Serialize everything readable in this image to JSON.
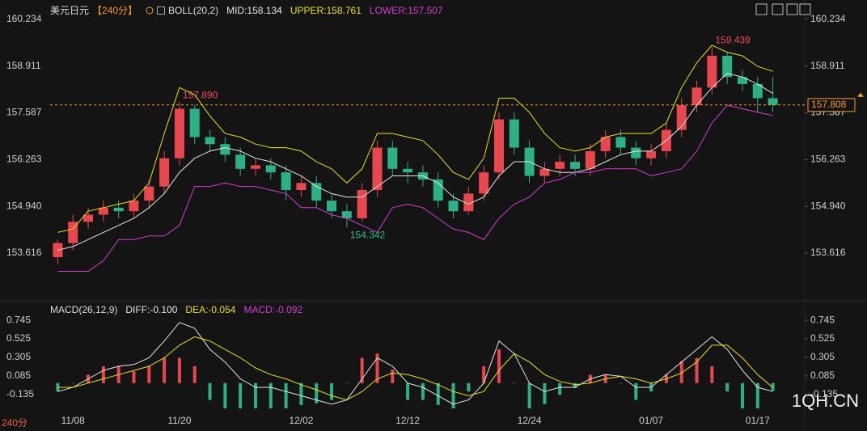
{
  "chart_data": [
    {
      "type": "candlestick",
      "symbol": "美元日元",
      "period": "【240分】",
      "indicator": "BOLL(20,2)",
      "up_color": "#e8474d",
      "down_color": "#2eb086",
      "open": [
        153.5,
        153.9,
        154.5,
        154.7,
        154.9,
        154.8,
        155.1,
        155.5,
        156.3,
        157.7,
        156.9,
        156.7,
        156.4,
        156.0,
        156.1,
        155.9,
        155.4,
        155.6,
        155.1,
        154.8,
        154.6,
        155.4,
        156.6,
        156.0,
        155.9,
        155.7,
        155.1,
        154.8,
        155.3,
        155.9,
        157.4,
        156.6,
        155.8,
        156.0,
        156.2,
        156.0,
        156.5,
        156.9,
        156.6,
        156.3,
        156.5,
        157.1,
        157.8,
        158.3,
        159.2,
        158.6,
        158.4,
        158.0
      ],
      "high": [
        154.0,
        154.7,
        154.9,
        155.1,
        155.1,
        155.3,
        155.7,
        156.5,
        157.89,
        157.8,
        157.1,
        156.9,
        156.6,
        156.3,
        156.3,
        156.1,
        155.8,
        155.8,
        155.3,
        155.0,
        155.6,
        156.8,
        156.8,
        156.2,
        156.1,
        155.9,
        155.3,
        155.5,
        156.1,
        157.6,
        157.6,
        156.8,
        156.2,
        156.4,
        156.4,
        156.7,
        157.1,
        157.1,
        156.8,
        156.7,
        157.3,
        158.0,
        158.5,
        159.439,
        159.3,
        158.8,
        158.6,
        158.6
      ],
      "low": [
        153.3,
        153.7,
        154.3,
        154.5,
        154.6,
        154.6,
        154.9,
        155.3,
        156.1,
        156.7,
        156.5,
        156.2,
        155.8,
        155.8,
        155.7,
        155.1,
        155.2,
        154.9,
        154.6,
        154.342,
        154.5,
        155.2,
        155.8,
        155.6,
        155.5,
        154.9,
        154.6,
        154.7,
        155.1,
        155.7,
        156.4,
        155.6,
        155.6,
        155.8,
        155.8,
        155.8,
        156.3,
        156.4,
        156.1,
        156.1,
        156.3,
        156.9,
        157.6,
        158.1,
        158.4,
        158.2,
        157.6,
        157.6
      ],
      "close": [
        153.9,
        154.5,
        154.7,
        154.9,
        154.8,
        155.1,
        155.5,
        156.3,
        157.7,
        156.9,
        156.7,
        156.4,
        156.0,
        156.1,
        155.9,
        155.4,
        155.6,
        155.1,
        154.8,
        154.6,
        155.4,
        156.6,
        156.0,
        155.9,
        155.7,
        155.1,
        154.8,
        155.3,
        155.9,
        157.4,
        156.6,
        155.8,
        156.0,
        156.2,
        156.0,
        156.5,
        156.9,
        156.6,
        156.3,
        156.5,
        157.1,
        157.8,
        158.3,
        159.2,
        158.6,
        158.4,
        158.0,
        157.808
      ],
      "high_labels": [
        null,
        null,
        null,
        null,
        null,
        null,
        null,
        null,
        "157.890",
        null,
        null,
        null,
        null,
        null,
        null,
        null,
        null,
        null,
        null,
        null,
        null,
        null,
        null,
        null,
        null,
        null,
        null,
        null,
        null,
        null,
        null,
        null,
        null,
        null,
        null,
        null,
        null,
        null,
        null,
        null,
        null,
        null,
        null,
        "159.439",
        null,
        null,
        null,
        null
      ],
      "low_labels": [
        null,
        null,
        null,
        null,
        null,
        null,
        null,
        null,
        null,
        null,
        null,
        null,
        null,
        null,
        null,
        null,
        null,
        null,
        null,
        "154.342",
        null,
        null,
        null,
        null,
        null,
        null,
        null,
        null,
        null,
        null,
        null,
        null,
        null,
        null,
        null,
        null,
        null,
        null,
        null,
        null,
        null,
        null,
        null,
        null,
        null,
        null,
        null,
        null
      ],
      "high_label_color": "#f04a5a",
      "low_label_color": "#2fbf8f",
      "last_color": "#f39a2b",
      "series": [
        {
          "name": "MID:158.134",
          "color": "#e6e6e6",
          "values": [
            153.7,
            153.8,
            154.0,
            154.2,
            154.4,
            154.6,
            154.9,
            155.3,
            155.9,
            156.3,
            156.5,
            156.6,
            156.5,
            156.3,
            156.2,
            156.0,
            155.8,
            155.5,
            155.3,
            155.2,
            155.2,
            155.5,
            155.8,
            155.8,
            155.8,
            155.6,
            155.2,
            155.0,
            155.2,
            155.8,
            156.2,
            156.2,
            156.0,
            155.9,
            155.9,
            156.0,
            156.2,
            156.4,
            156.5,
            156.5,
            156.8,
            157.2,
            157.8,
            158.3,
            158.7,
            158.6,
            158.4,
            158.134
          ]
        },
        {
          "name": "UPPER:158.761",
          "color": "#e8e020",
          "values": [
            154.2,
            154.3,
            154.8,
            154.9,
            155.0,
            155.1,
            155.6,
            157.0,
            158.3,
            158.1,
            157.5,
            157.0,
            156.9,
            156.7,
            156.6,
            156.6,
            156.5,
            156.2,
            156.0,
            155.6,
            156.0,
            157.0,
            157.0,
            156.9,
            156.8,
            156.4,
            155.9,
            155.7,
            156.3,
            158.0,
            158.0,
            157.6,
            157.0,
            156.6,
            156.5,
            156.6,
            156.9,
            157.0,
            157.0,
            157.0,
            157.3,
            158.3,
            159.0,
            159.5,
            159.3,
            159.2,
            158.9,
            158.761
          ]
        },
        {
          "name": "LOWER:157.507",
          "color": "#d33fd3",
          "values": [
            153.1,
            153.1,
            153.1,
            153.4,
            154.0,
            154.0,
            154.1,
            154.1,
            154.4,
            155.5,
            155.5,
            155.6,
            155.5,
            155.5,
            155.4,
            155.3,
            154.9,
            154.9,
            154.7,
            154.6,
            154.4,
            154.2,
            154.9,
            155.0,
            154.9,
            154.6,
            154.3,
            154.2,
            154.0,
            154.6,
            155.0,
            155.2,
            155.6,
            155.7,
            155.9,
            155.9,
            156.0,
            156.0,
            156.0,
            155.8,
            155.9,
            156.0,
            156.5,
            157.3,
            157.8,
            157.7,
            157.6,
            157.507
          ]
        }
      ],
      "ylim": [
        152.31,
        160.55
      ],
      "yticks": [
        160.234,
        158.911,
        157.587,
        156.263,
        {
          "value": 154.94,
          "label": "154.940"
        },
        153.616
      ]
    },
    {
      "type": "macd",
      "indicator": "MACD(26,12,9)",
      "categories": [
        null,
        "11/08",
        null,
        null,
        null,
        null,
        null,
        null,
        "11/20",
        null,
        null,
        null,
        null,
        null,
        null,
        null,
        "12/02",
        null,
        null,
        null,
        null,
        null,
        null,
        "12/12",
        null,
        null,
        null,
        null,
        null,
        null,
        null,
        "12/24",
        null,
        null,
        null,
        null,
        null,
        null,
        null,
        "01/07",
        null,
        null,
        null,
        null,
        null,
        null,
        "01/17",
        null
      ],
      "up_color": "#e8474d",
      "down_color": "#2eb086",
      "series": [
        {
          "name": "DIFF:-0.100",
          "color": "#e6e6e6",
          "values": [
            -0.1,
            -0.05,
            0.05,
            0.15,
            0.2,
            0.22,
            0.3,
            0.5,
            0.72,
            0.65,
            0.4,
            0.25,
            0.05,
            -0.05,
            -0.05,
            -0.1,
            -0.15,
            -0.2,
            -0.25,
            -0.2,
            0.05,
            0.3,
            0.2,
            0.0,
            -0.05,
            -0.15,
            -0.25,
            -0.2,
            0.0,
            0.5,
            0.35,
            0.0,
            -0.1,
            -0.05,
            -0.05,
            0.05,
            0.1,
            0.08,
            -0.05,
            -0.05,
            0.1,
            0.25,
            0.4,
            0.55,
            0.4,
            0.15,
            -0.05,
            -0.1
          ]
        },
        {
          "name": "DEA:-0.054",
          "color": "#e8e020",
          "values": [
            -0.05,
            -0.05,
            0.0,
            0.05,
            0.1,
            0.15,
            0.2,
            0.3,
            0.45,
            0.55,
            0.5,
            0.4,
            0.3,
            0.18,
            0.1,
            0.05,
            -0.02,
            -0.08,
            -0.15,
            -0.2,
            -0.1,
            0.05,
            0.12,
            0.1,
            0.05,
            -0.02,
            -0.1,
            -0.15,
            -0.1,
            0.15,
            0.35,
            0.25,
            0.1,
            0.02,
            -0.02,
            0.0,
            0.05,
            0.08,
            0.05,
            0.0,
            0.05,
            0.12,
            0.25,
            0.45,
            0.45,
            0.3,
            0.1,
            -0.054
          ]
        },
        {
          "name": "MACD:-0.092",
          "color": "#d33fd3",
          "bars": true,
          "values": [
            -0.1,
            0.0,
            0.1,
            0.2,
            0.2,
            0.14,
            0.2,
            0.3,
            0.3,
            0.2,
            -0.2,
            -0.3,
            -0.3,
            -0.3,
            -0.3,
            -0.3,
            -0.26,
            -0.24,
            -0.2,
            0.0,
            0.3,
            0.35,
            0.16,
            -0.2,
            -0.2,
            -0.26,
            -0.3,
            -0.1,
            0.2,
            0.4,
            0.0,
            -0.3,
            -0.25,
            -0.14,
            -0.06,
            0.1,
            0.1,
            0.0,
            -0.2,
            -0.1,
            0.1,
            0.26,
            0.3,
            0.2,
            -0.1,
            -0.3,
            -0.3,
            -0.092
          ]
        }
      ],
      "ylim": [
        -0.3,
        0.9
      ],
      "yticks": [
        0.745,
        0.525,
        0.305,
        0.085,
        -0.135
      ]
    }
  ],
  "period_tag": "240分",
  "watermark": "1QH.CN"
}
